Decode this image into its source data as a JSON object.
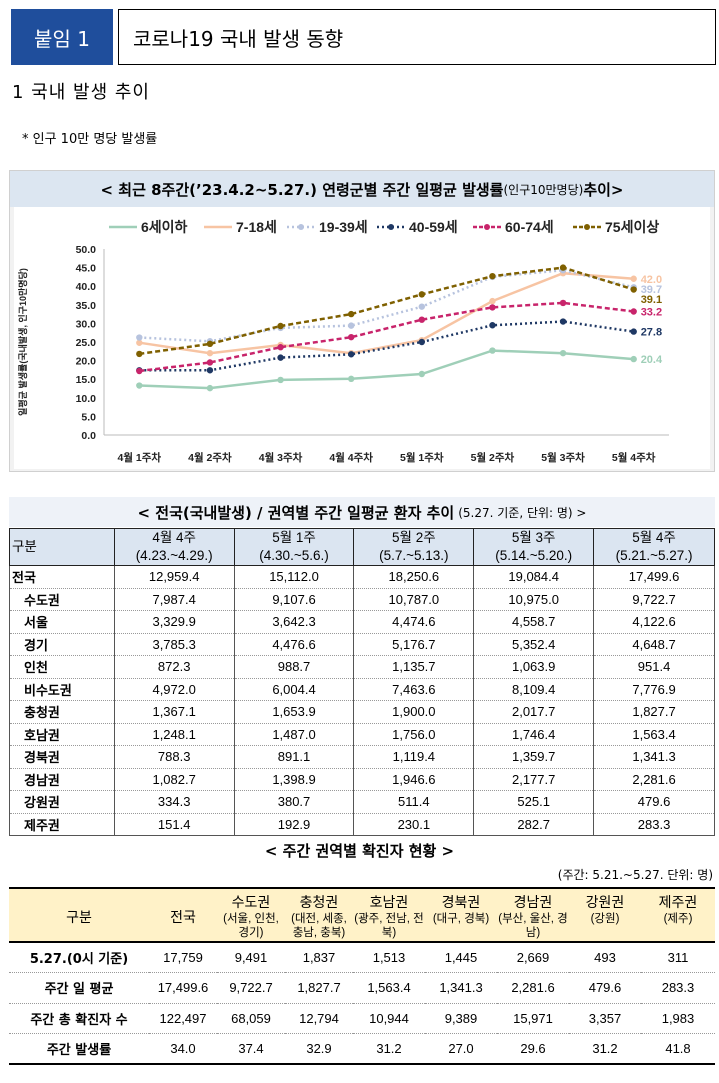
{
  "header": {
    "tag": "붙임 1",
    "title": "코로나19 국내 발생 동향"
  },
  "section": {
    "title": "1  국내 발생 추이",
    "note": "* 인구 10만 명당 발생률"
  },
  "chart_head": {
    "main": "< 최근 8주간(’23.4.2~5.27.) 연령군별 주간 일평균 발생률",
    "small": "(인구10만명당)",
    "tail": " 추이>"
  },
  "chart_data": {
    "type": "line",
    "title": "최근 8주간(’23.4.2~5.27.) 연령군별 주간 일평균 발생률(인구10만명당) 추이",
    "ylabel": "일평균 발생률(국내발생, 인구10만명당)",
    "ylim": [
      0,
      50
    ],
    "yticks": [
      "0.0",
      "5.0",
      "10.0",
      "15.0",
      "20.0",
      "25.0",
      "30.0",
      "35.0",
      "40.0",
      "45.0",
      "50.0"
    ],
    "categories": [
      "4월 1주차",
      "4월 2주차",
      "4월 3주차",
      "4월 4주차",
      "5월 1주차",
      "5월 2주차",
      "5월 3주차",
      "5월 4주차"
    ],
    "legend_position": "top",
    "series": [
      {
        "name": "6세이하",
        "color": "#9fcfb8",
        "dash": "solid",
        "values": [
          13.3,
          12.6,
          14.8,
          15.1,
          16.4,
          22.7,
          22.0,
          20.4
        ],
        "end_label": "20.4"
      },
      {
        "name": "7-18세",
        "color": "#f7c4a3",
        "dash": "solid",
        "values": [
          24.8,
          22.0,
          24.2,
          22.0,
          25.5,
          36.0,
          43.5,
          42.0
        ],
        "end_label": "42.0"
      },
      {
        "name": "19-39세",
        "color": "#b7c3de",
        "dash": "dot",
        "values": [
          26.2,
          25.2,
          28.8,
          29.4,
          34.5,
          42.5,
          44.3,
          39.7
        ],
        "end_label": "39.7"
      },
      {
        "name": "40-59세",
        "color": "#1f3864",
        "dash": "dot",
        "values": [
          17.4,
          17.4,
          20.8,
          21.7,
          25.0,
          29.5,
          30.5,
          27.8
        ],
        "end_label": "27.8"
      },
      {
        "name": "60-74세",
        "color": "#c8246b",
        "dash": "dash",
        "values": [
          17.2,
          19.5,
          23.6,
          26.3,
          31.0,
          34.3,
          35.5,
          33.2
        ],
        "end_label": "33.2"
      },
      {
        "name": "75세이상",
        "color": "#7f6000",
        "dash": "dash",
        "values": [
          21.8,
          24.5,
          29.3,
          32.5,
          37.8,
          42.7,
          45.0,
          39.1
        ],
        "end_label": "39.1"
      }
    ]
  },
  "table2": {
    "title": "< 전국(국내발생) / 권역별 주간 일평균 환자 추이",
    "title_small": "(5.27. 기준, 단위: 명) >",
    "col_label": "구분",
    "weeks": [
      {
        "name": "4월 4주",
        "range": "(4.23.~4.29.)"
      },
      {
        "name": "5월 1주",
        "range": "(4.30.~5.6.)"
      },
      {
        "name": "5월 2주",
        "range": "(5.7.~5.13.)"
      },
      {
        "name": "5월 3주",
        "range": "(5.14.~5.20.)"
      },
      {
        "name": "5월 4주",
        "range": "(5.21.~5.27.)"
      }
    ],
    "rows": [
      {
        "region": "전국",
        "values": [
          "12,959.4",
          "15,112.0",
          "18,250.6",
          "19,084.4",
          "17,499.6"
        ]
      },
      {
        "region": "수도권",
        "values": [
          "7,987.4",
          "9,107.6",
          "10,787.0",
          "10,975.0",
          "9,722.7"
        ]
      },
      {
        "region": "서울",
        "values": [
          "3,329.9",
          "3,642.3",
          "4,474.6",
          "4,558.7",
          "4,122.6"
        ]
      },
      {
        "region": "경기",
        "values": [
          "3,785.3",
          "4,476.6",
          "5,176.7",
          "5,352.4",
          "4,648.7"
        ]
      },
      {
        "region": "인천",
        "values": [
          "872.3",
          "988.7",
          "1,135.7",
          "1,063.9",
          "951.4"
        ]
      },
      {
        "region": "비수도권",
        "values": [
          "4,972.0",
          "6,004.4",
          "7,463.6",
          "8,109.4",
          "7,776.9"
        ]
      },
      {
        "region": "충청권",
        "values": [
          "1,367.1",
          "1,653.9",
          "1,900.0",
          "2,017.7",
          "1,827.7"
        ]
      },
      {
        "region": "호남권",
        "values": [
          "1,248.1",
          "1,487.0",
          "1,756.0",
          "1,746.4",
          "1,563.4"
        ]
      },
      {
        "region": "경북권",
        "values": [
          "788.3",
          "891.1",
          "1,119.4",
          "1,359.7",
          "1,341.3"
        ]
      },
      {
        "region": "경남권",
        "values": [
          "1,082.7",
          "1,398.9",
          "1,946.6",
          "2,177.7",
          "2,281.6"
        ]
      },
      {
        "region": "강원권",
        "values": [
          "334.3",
          "380.7",
          "511.4",
          "525.1",
          "479.6"
        ]
      },
      {
        "region": "제주권",
        "values": [
          "151.4",
          "192.9",
          "230.1",
          "282.7",
          "283.3"
        ]
      }
    ]
  },
  "table3": {
    "title": "< 주간 권역별 확진자 현황 >",
    "unit": "(주간: 5.21.~5.27. 단위: 명)",
    "col_label": "구분",
    "cols": [
      {
        "name": "전국",
        "sub": ""
      },
      {
        "name": "수도권",
        "sub": "(서울, 인천, 경기)"
      },
      {
        "name": "충청권",
        "sub": "(대전, 세종, 충남, 충북)"
      },
      {
        "name": "호남권",
        "sub": "(광주, 전남, 전북)"
      },
      {
        "name": "경북권",
        "sub": "(대구, 경북)"
      },
      {
        "name": "경남권",
        "sub": "(부산, 울산, 경남)"
      },
      {
        "name": "강원권",
        "sub": "(강원)"
      },
      {
        "name": "제주권",
        "sub": "(제주)"
      }
    ],
    "rows": [
      {
        "label": "5.27.(0시 기준)",
        "values": [
          "17,759",
          "9,491",
          "1,837",
          "1,513",
          "1,445",
          "2,669",
          "493",
          "311"
        ]
      },
      {
        "label": "주간 일 평균",
        "values": [
          "17,499.6",
          "9,722.7",
          "1,827.7",
          "1,563.4",
          "1,341.3",
          "2,281.6",
          "479.6",
          "283.3"
        ]
      },
      {
        "label": "주간 총 확진자 수",
        "values": [
          "122,497",
          "68,059",
          "12,794",
          "10,944",
          "9,389",
          "15,971",
          "3,357",
          "1,983"
        ]
      },
      {
        "label": "주간 발생률",
        "values": [
          "34.0",
          "37.4",
          "32.9",
          "31.2",
          "27.0",
          "29.6",
          "31.2",
          "41.8"
        ]
      }
    ]
  }
}
